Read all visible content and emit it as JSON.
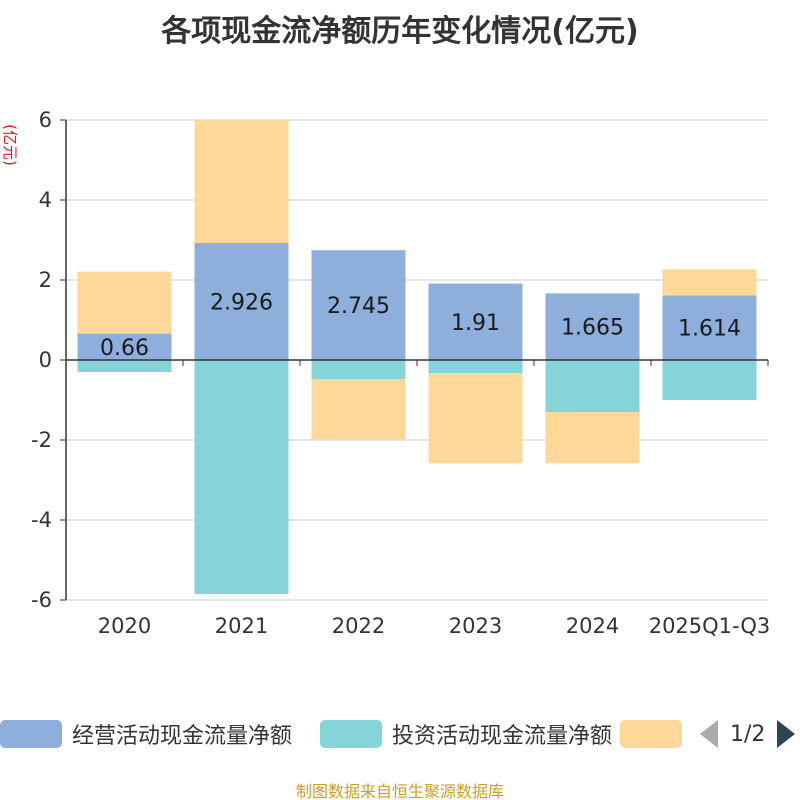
{
  "colors": {
    "operating": "#8eaedb",
    "investing": "#85d4d7",
    "financing": "#fdd899",
    "grid": "#cccccc",
    "axis": "#333333",
    "ylabel": "#e8131c",
    "source": "#c8a02a"
  },
  "chart_data": {
    "type": "bar",
    "stacked": true,
    "title": "各项现金流净额历年变化情况(亿元)",
    "ylabel": "(亿元)",
    "xlabel": "",
    "ylim": [
      -6,
      6
    ],
    "yticks": [
      "6",
      "4",
      "2",
      "0",
      "-2",
      "-4",
      "-6"
    ],
    "ytick_values": [
      6,
      4,
      2,
      0,
      -2,
      -4,
      -6
    ],
    "categories": [
      "2020",
      "2021",
      "2022",
      "2023",
      "2024",
      "2025Q1-Q3"
    ],
    "series": [
      {
        "name": "经营活动现金流量净额",
        "values": [
          0.66,
          2.926,
          2.745,
          1.91,
          1.665,
          1.614
        ],
        "labels": [
          "0.66",
          "2.926",
          "2.745",
          "1.91",
          "1.665",
          "1.614"
        ]
      },
      {
        "name": "投资活动现金流量净额",
        "values": [
          -0.3,
          -5.85,
          -0.48,
          -0.33,
          -1.3,
          -1.0
        ]
      },
      {
        "name": "",
        "values": [
          1.55,
          3.07,
          -1.5,
          -2.25,
          -1.28,
          0.65
        ]
      }
    ],
    "legend_position": "bottom"
  },
  "legend": {
    "items": [
      "经营活动现金流量净额",
      "投资活动现金流量净额",
      ""
    ],
    "page": "1/2"
  },
  "source": "制图数据来自恒生聚源数据库"
}
